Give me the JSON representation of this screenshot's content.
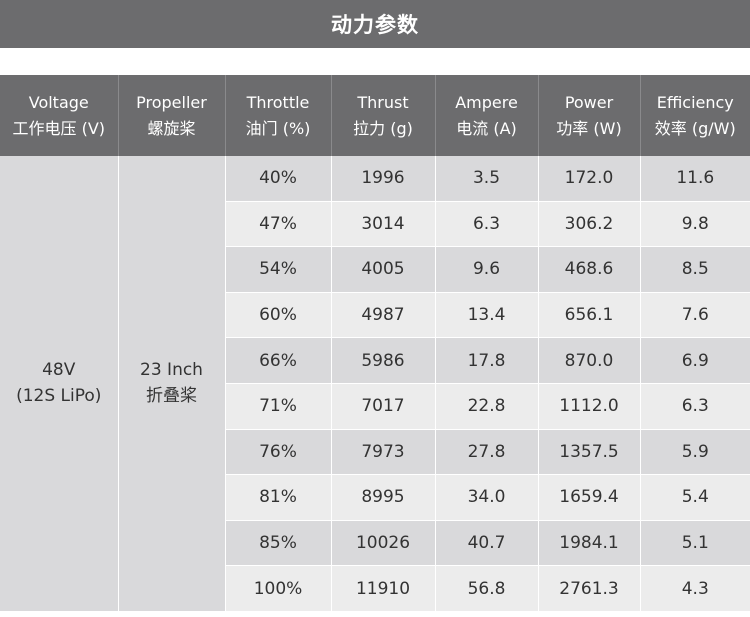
{
  "title": "动力参数",
  "headers": [
    {
      "en": "Voltage",
      "zh": "工作电压 (V)"
    },
    {
      "en": "Propeller",
      "zh": "螺旋桨"
    },
    {
      "en": "Throttle",
      "zh": "油门 (%)"
    },
    {
      "en": "Thrust",
      "zh": "拉力 (g)"
    },
    {
      "en": "Ampere",
      "zh": "电流 (A)"
    },
    {
      "en": "Power",
      "zh": "功率 (W)"
    },
    {
      "en": "Efficiency",
      "zh": "效率 (g/W)"
    }
  ],
  "voltage": {
    "line1": "48V",
    "line2": "(12S LiPo)"
  },
  "propeller": {
    "line1": "23 Inch",
    "line2": "折叠桨"
  },
  "rows": [
    {
      "throttle": "40%",
      "thrust": "1996",
      "ampere": "3.5",
      "power": "172.0",
      "efficiency": "11.6"
    },
    {
      "throttle": "47%",
      "thrust": "3014",
      "ampere": "6.3",
      "power": "306.2",
      "efficiency": "9.8"
    },
    {
      "throttle": "54%",
      "thrust": "4005",
      "ampere": "9.6",
      "power": "468.6",
      "efficiency": "8.5"
    },
    {
      "throttle": "60%",
      "thrust": "4987",
      "ampere": "13.4",
      "power": "656.1",
      "efficiency": "7.6"
    },
    {
      "throttle": "66%",
      "thrust": "5986",
      "ampere": "17.8",
      "power": "870.0",
      "efficiency": "6.9"
    },
    {
      "throttle": "71%",
      "thrust": "7017",
      "ampere": "22.8",
      "power": "1112.0",
      "efficiency": "6.3"
    },
    {
      "throttle": "76%",
      "thrust": "7973",
      "ampere": "27.8",
      "power": "1357.5",
      "efficiency": "5.9"
    },
    {
      "throttle": "81%",
      "thrust": "8995",
      "ampere": "34.0",
      "power": "1659.4",
      "efficiency": "5.4"
    },
    {
      "throttle": "85%",
      "thrust": "10026",
      "ampere": "40.7",
      "power": "1984.1",
      "efficiency": "5.1"
    },
    {
      "throttle": "100%",
      "thrust": "11910",
      "ampere": "56.8",
      "power": "2761.3",
      "efficiency": "4.3"
    }
  ],
  "colors": {
    "header_bg": "#6c6c6e",
    "row_dark": "#d9d9db",
    "row_light": "#ececec",
    "text": "#333333"
  }
}
